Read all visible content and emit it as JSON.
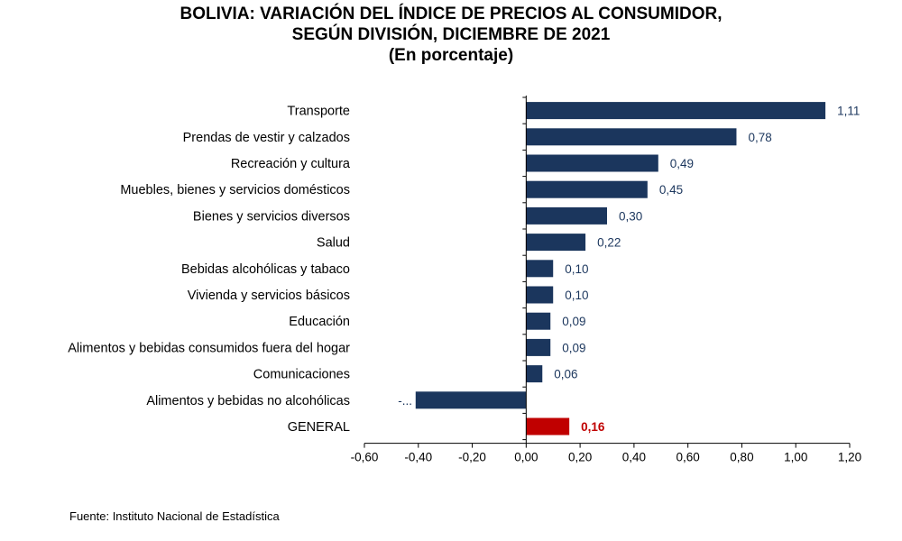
{
  "chart_data": {
    "type": "bar",
    "orientation": "horizontal",
    "title": "BOLIVIA: VARIACIÓN DEL ÍNDICE DE PRECIOS AL CONSUMIDOR,",
    "title_line2": "SEGÚN DIVISIÓN, DICIEMBRE DE 2021",
    "subtitle": "(En porcentaje)",
    "xlim": [
      -0.6,
      1.2
    ],
    "x_ticks": [
      "-0,60",
      "-0,40",
      "-0,20",
      "0,00",
      "0,20",
      "0,40",
      "0,60",
      "0,80",
      "1,00",
      "1,20"
    ],
    "grid": false,
    "categories": [
      "Transporte",
      "Prendas de vestir y calzados",
      "Recreación y cultura",
      "Muebles, bienes y servicios domésticos",
      "Bienes y servicios diversos",
      "Salud",
      "Bebidas alcohólicas y tabaco",
      "Vivienda y servicios básicos",
      "Educación",
      "Alimentos y bebidas consumidos fuera del hogar",
      "Comunicaciones",
      "Alimentos y bebidas no alcohólicas",
      "GENERAL"
    ],
    "values": [
      1.11,
      0.78,
      0.49,
      0.45,
      0.3,
      0.22,
      0.1,
      0.1,
      0.09,
      0.09,
      0.06,
      -0.41,
      0.16
    ],
    "data_labels": [
      "1,11",
      "0,78",
      "0,49",
      "0,45",
      "0,30",
      "0,22",
      "0,10",
      "0,10",
      "0,09",
      "0,09",
      "0,06",
      "-...",
      "0,16"
    ],
    "highlight_index": 12,
    "colors": {
      "bar": "#1b365d",
      "highlight": "#c00000",
      "label": "#1b365d",
      "highlight_label": "#c00000",
      "axis": "#000000"
    }
  },
  "source": "Fuente: Instituto Nacional de Estadística"
}
